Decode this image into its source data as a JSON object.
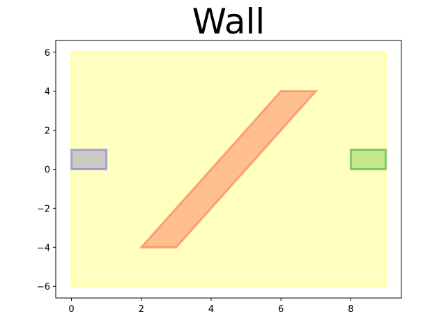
{
  "chart_data": {
    "type": "area",
    "title": "Wall",
    "xlabel": "",
    "ylabel": "",
    "xlim": [
      -0.45,
      9.45
    ],
    "ylim": [
      -6.6,
      6.6
    ],
    "x_ticks": [
      0,
      2,
      4,
      6,
      8
    ],
    "y_ticks": [
      -6,
      -4,
      -2,
      0,
      2,
      4,
      6
    ],
    "x_tick_labels": [
      "0",
      "2",
      "4",
      "6",
      "8"
    ],
    "y_tick_labels": [
      "−6",
      "−4",
      "−2",
      "0",
      "2",
      "4",
      "6"
    ],
    "grid": false,
    "shapes": [
      {
        "id": "region",
        "points": [
          [
            0,
            -6
          ],
          [
            9,
            -6
          ],
          [
            9,
            6
          ],
          [
            0,
            6
          ]
        ],
        "fill": "#ffff80",
        "fill_opacity": 0.5,
        "stroke": "#ffff80",
        "stroke_opacity": 0.6
      },
      {
        "id": "wall",
        "points": [
          [
            2,
            -4
          ],
          [
            3,
            -4
          ],
          [
            7,
            4
          ],
          [
            6,
            4
          ]
        ],
        "fill": "#ff8c66",
        "fill_opacity": 0.55,
        "stroke": "#ff6a4d",
        "stroke_opacity": 0.55
      },
      {
        "id": "start",
        "points": [
          [
            0,
            0
          ],
          [
            1,
            0
          ],
          [
            1,
            1
          ],
          [
            0,
            1
          ]
        ],
        "fill": "#8c8cc8",
        "fill_opacity": 0.45,
        "stroke": "#7070e0",
        "stroke_opacity": 0.55
      },
      {
        "id": "goal",
        "points": [
          [
            8,
            0
          ],
          [
            9,
            0
          ],
          [
            9,
            1
          ],
          [
            8,
            1
          ]
        ],
        "fill": "#7fd04f",
        "fill_opacity": 0.45,
        "stroke": "#4aa83a",
        "stroke_opacity": 0.6
      }
    ]
  }
}
